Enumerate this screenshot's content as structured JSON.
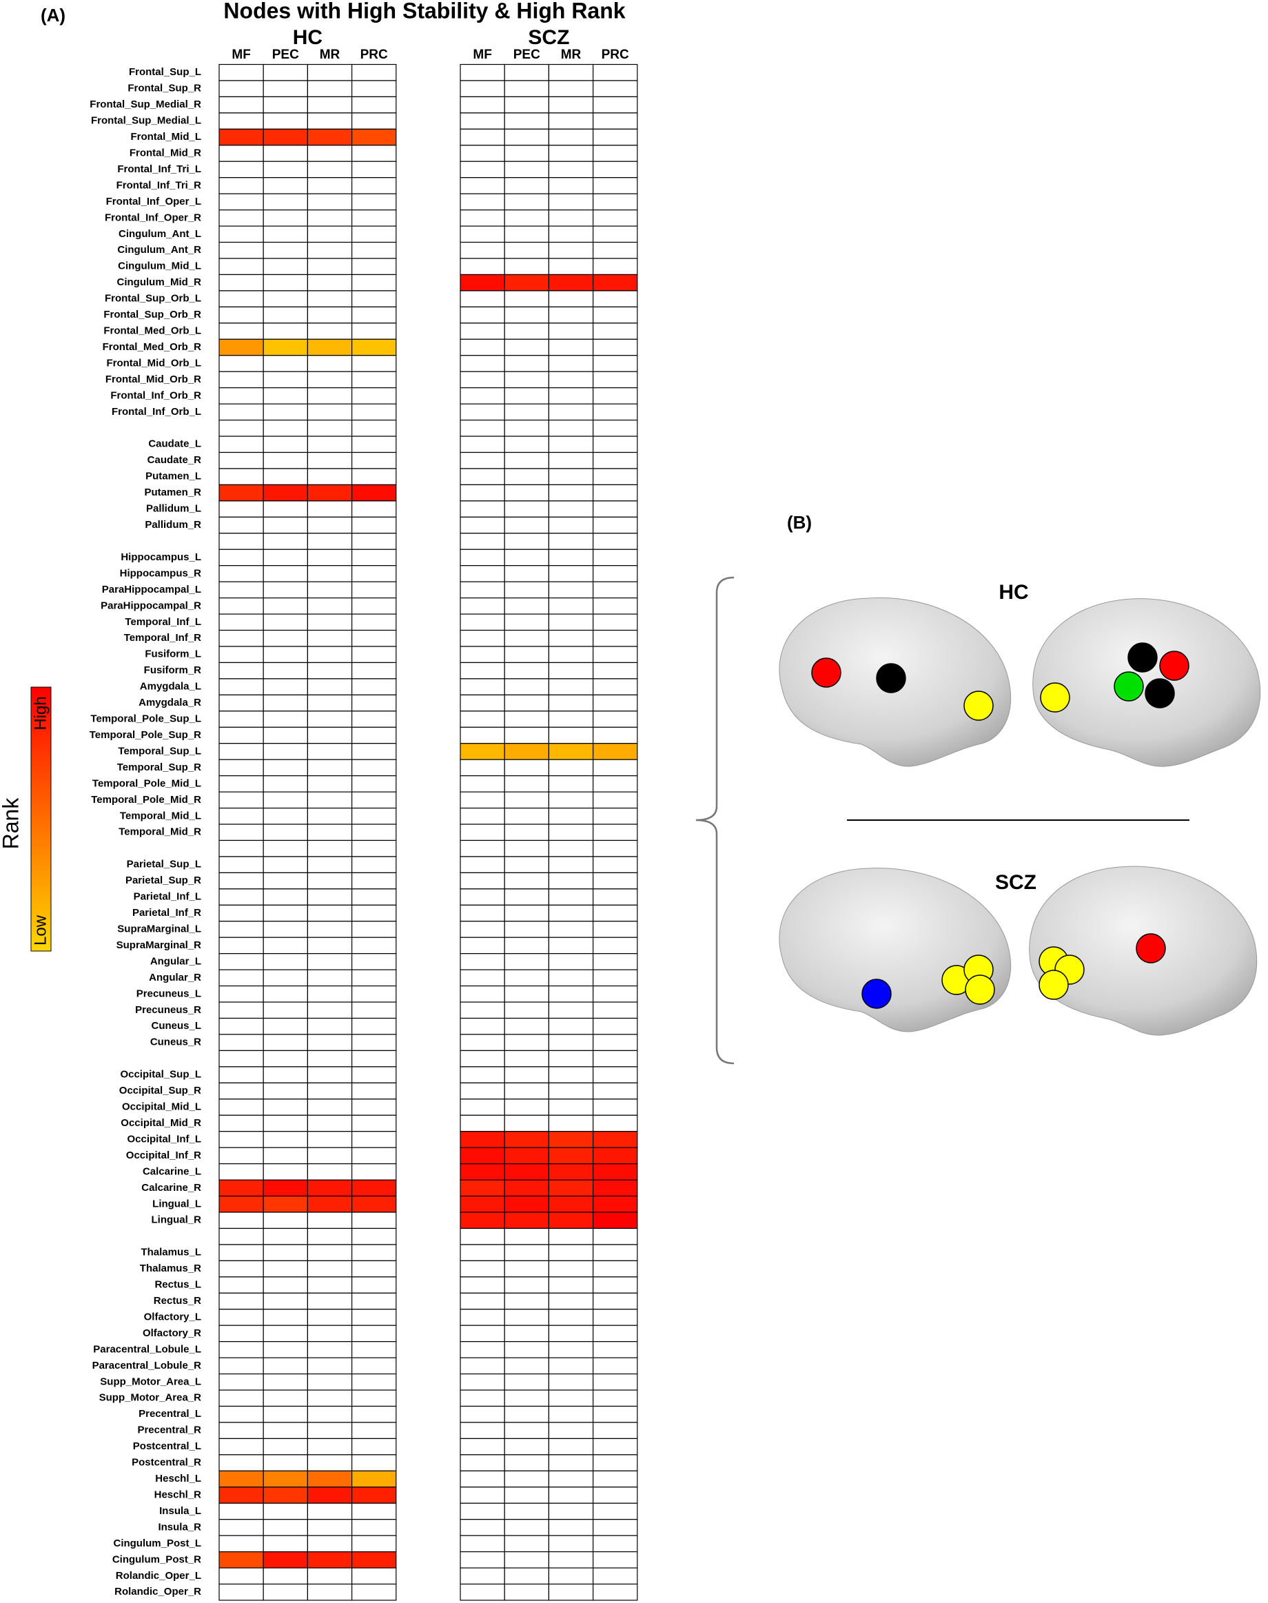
{
  "chart_data": {
    "type": "heatmap",
    "panel": "(A)",
    "title": "Nodes with High Stability & High Rank",
    "rows": [
      "Frontal_Sup_L",
      "Frontal_Sup_R",
      "Frontal_Sup_Medial_R",
      "Frontal_Sup_Medial_L",
      "Frontal_Mid_L",
      "Frontal_Mid_R",
      "Frontal_Inf_Tri_L",
      "Frontal_Inf_Tri_R",
      "Frontal_Inf_Oper_L",
      "Frontal_Inf_Oper_R",
      "Cingulum_Ant_L",
      "Cingulum_Ant_R",
      "Cingulum_Mid_L",
      "Cingulum_Mid_R",
      "Frontal_Sup_Orb_L",
      "Frontal_Sup_Orb_R",
      "Frontal_Med_Orb_L",
      "Frontal_Med_Orb_R",
      "Frontal_Mid_Orb_L",
      "Frontal_Mid_Orb_R",
      "Frontal_Inf_Orb_R",
      "Frontal_Inf_Orb_L",
      null,
      "Caudate_L",
      "Caudate_R",
      "Putamen_L",
      "Putamen_R",
      "Pallidum_L",
      "Pallidum_R",
      null,
      "Hippocampus_L",
      "Hippocampus_R",
      "ParaHippocampal_L",
      "ParaHippocampal_R",
      "Temporal_Inf_L",
      "Temporal_Inf_R",
      "Fusiform_L",
      "Fusiform_R",
      "Amygdala_L",
      "Amygdala_R",
      "Temporal_Pole_Sup_L",
      "Temporal_Pole_Sup_R",
      "Temporal_Sup_L",
      "Temporal_Sup_R",
      "Temporal_Pole_Mid_L",
      "Temporal_Pole_Mid_R",
      "Temporal_Mid_L",
      "Temporal_Mid_R",
      null,
      "Parietal_Sup_L",
      "Parietal_Sup_R",
      "Parietal_Inf_L",
      "Parietal_Inf_R",
      "SupraMarginal_L",
      "SupraMarginal_R",
      "Angular_L",
      "Angular_R",
      "Precuneus_L",
      "Precuneus_R",
      "Cuneus_L",
      "Cuneus_R",
      null,
      "Occipital_Sup_L",
      "Occipital_Sup_R",
      "Occipital_Mid_L",
      "Occipital_Mid_R",
      "Occipital_Inf_L",
      "Occipital_Inf_R",
      "Calcarine_L",
      "Calcarine_R",
      "Lingual_L",
      "Lingual_R",
      null,
      "Thalamus_L",
      "Thalamus_R",
      "Rectus_L",
      "Rectus_R",
      "Olfactory_L",
      "Olfactory_R",
      "Paracentral_Lobule_L",
      "Paracentral_Lobule_R",
      "Supp_Motor_Area_L",
      "Supp_Motor_Area_R",
      "Precentral_L",
      "Precentral_R",
      "Postcentral_L",
      "Postcentral_R",
      "Heschl_L",
      "Heschl_R",
      "Insula_L",
      "Insula_R",
      "Cingulum_Post_L",
      "Cingulum_Post_R",
      "Rolandic_Oper_L",
      "Rolandic_Oper_R"
    ],
    "groups": [
      {
        "name": "HC",
        "columns": [
          "MF",
          "PEC",
          "MR",
          "PRC"
        ],
        "values": [
          null,
          null,
          null,
          null,
          [
            0.8,
            0.8,
            0.75,
            0.65
          ],
          null,
          null,
          null,
          null,
          null,
          null,
          null,
          null,
          null,
          null,
          null,
          null,
          [
            0.3,
            0.1,
            0.15,
            0.1
          ],
          null,
          null,
          null,
          null,
          null,
          null,
          null,
          null,
          [
            0.8,
            0.9,
            0.85,
            0.95
          ],
          null,
          null,
          null,
          null,
          null,
          null,
          null,
          null,
          null,
          null,
          null,
          null,
          null,
          null,
          null,
          null,
          null,
          null,
          null,
          null,
          null,
          null,
          null,
          null,
          null,
          null,
          null,
          null,
          null,
          null,
          null,
          null,
          null,
          null,
          null,
          null,
          null,
          null,
          null,
          null,
          null,
          null,
          [
            0.85,
            0.95,
            0.9,
            0.9
          ],
          [
            0.8,
            0.75,
            0.85,
            0.85
          ],
          null,
          null,
          null,
          null,
          null,
          null,
          null,
          null,
          null,
          null,
          null,
          null,
          null,
          null,
          null,
          null,
          [
            0.45,
            0.4,
            0.5,
            0.2
          ],
          [
            0.8,
            0.75,
            0.9,
            0.85
          ],
          null,
          null,
          null,
          [
            0.65,
            0.9,
            0.85,
            0.85
          ],
          null,
          null
        ]
      },
      {
        "name": "SCZ",
        "columns": [
          "MF",
          "PEC",
          "MR",
          "PRC"
        ],
        "values": [
          null,
          null,
          null,
          null,
          null,
          null,
          null,
          null,
          null,
          null,
          null,
          null,
          null,
          [
            0.95,
            0.85,
            0.9,
            0.9
          ],
          null,
          null,
          null,
          null,
          null,
          null,
          null,
          null,
          null,
          null,
          null,
          null,
          null,
          null,
          null,
          null,
          null,
          null,
          null,
          null,
          null,
          null,
          null,
          null,
          null,
          null,
          null,
          null,
          [
            0.15,
            0.2,
            0.15,
            0.2
          ],
          null,
          null,
          null,
          null,
          null,
          null,
          null,
          null,
          null,
          null,
          null,
          null,
          null,
          null,
          null,
          null,
          null,
          null,
          null,
          null,
          null,
          null,
          null,
          [
            0.9,
            0.85,
            0.8,
            0.85
          ],
          [
            0.95,
            0.9,
            0.85,
            0.9
          ],
          [
            0.95,
            0.95,
            0.9,
            0.95
          ],
          [
            0.85,
            0.9,
            0.85,
            0.95
          ],
          [
            0.9,
            0.95,
            0.9,
            0.95
          ],
          [
            0.9,
            0.9,
            0.9,
            1.0
          ],
          null,
          null,
          null,
          null,
          null,
          null,
          null,
          null,
          null,
          null,
          null,
          null,
          null,
          null,
          null,
          null,
          null,
          null,
          null,
          null,
          null,
          null,
          null
        ]
      }
    ],
    "clim": [
      0,
      1
    ],
    "colors": {
      "low": "#ffd700",
      "high": "#ff0000",
      "empty": "#ffffff"
    },
    "colorbar": {
      "label": "Rank",
      "low": "Low",
      "high": "High"
    }
  },
  "panel_b": {
    "label": "(B)",
    "groups": [
      "HC",
      "SCZ"
    ]
  }
}
